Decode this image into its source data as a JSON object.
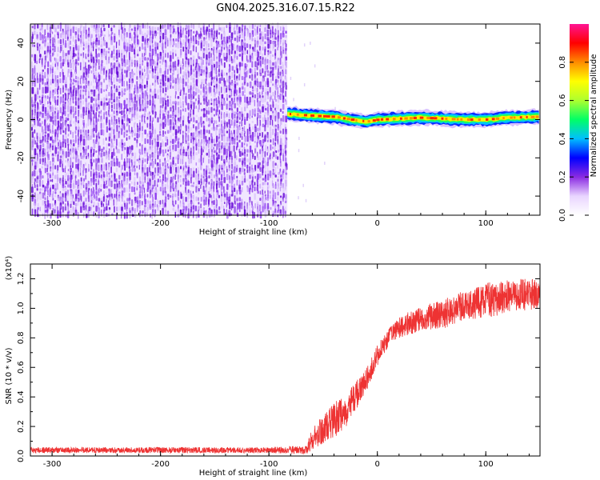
{
  "figure": {
    "title": "GN04.2025.316.07.15.R22"
  },
  "chart_data": [
    {
      "type": "heatmap",
      "xlabel": "Height of straight line (km)",
      "ylabel": "Frequency (Hz)",
      "xlim": [
        -320,
        150
      ],
      "ylim": [
        -50,
        50
      ],
      "xticks": [
        -300,
        -200,
        -100,
        0,
        100
      ],
      "yticks": [
        -40,
        -20,
        0,
        20,
        40
      ],
      "noise_region": {
        "x": [
          -320,
          -83
        ],
        "y": [
          -50,
          50
        ]
      },
      "signal_band": {
        "x": [
          -83,
          150
        ],
        "center_freq": [
          [
            -83,
            3
          ],
          [
            -60,
            2
          ],
          [
            -40,
            1.5
          ],
          [
            -25,
            0
          ],
          [
            -10,
            -1
          ],
          [
            0,
            0
          ],
          [
            20,
            0.5
          ],
          [
            40,
            1
          ],
          [
            60,
            0.5
          ],
          [
            80,
            0
          ],
          [
            100,
            0
          ],
          [
            120,
            1
          ],
          [
            150,
            1.5
          ]
        ],
        "half_width": 2.5
      },
      "colorbar": {
        "label": "Normalized spectral amplitude",
        "range": [
          0,
          1
        ],
        "ticks": [
          "0.0",
          "0.2",
          "0.4",
          "0.6",
          "0.8"
        ],
        "colors": [
          "#ffffff",
          "#e9d5ff",
          "#8a2be2",
          "#0000ff",
          "#00bfff",
          "#00ff66",
          "#adff2f",
          "#ffff00",
          "#ff8c00",
          "#ff0000",
          "#ff1493"
        ]
      },
      "grid": false
    },
    {
      "type": "line",
      "xlabel": "Height of straight line (km)",
      "ylabel": "SNR (10 * v/v)",
      "yscale_note": "(x10⁴)",
      "xlim": [
        -320,
        150
      ],
      "ylim": [
        0,
        1.3
      ],
      "xticks": [
        -300,
        -200,
        -100,
        0,
        100
      ],
      "yticks": [
        "0.0",
        "0.2",
        "0.4",
        "0.6",
        "0.8",
        "1.0",
        "1.2"
      ],
      "series": [
        {
          "color": "#ee3333",
          "x": [
            -320,
            -100,
            -65,
            -60,
            -50,
            -40,
            -30,
            -20,
            -10,
            0,
            10,
            20,
            30,
            40,
            60,
            80,
            100,
            120,
            150
          ],
          "y": [
            0.04,
            0.04,
            0.04,
            0.12,
            0.17,
            0.24,
            0.3,
            0.4,
            0.52,
            0.68,
            0.8,
            0.87,
            0.9,
            0.93,
            0.96,
            1.02,
            1.05,
            1.08,
            1.1
          ],
          "noise": [
            0.02,
            0.02,
            0.03,
            0.08,
            0.1,
            0.12,
            0.12,
            0.1,
            0.08,
            0.07,
            0.06,
            0.07,
            0.08,
            0.08,
            0.1,
            0.1,
            0.12,
            0.12,
            0.1
          ]
        }
      ],
      "grid": false
    }
  ]
}
